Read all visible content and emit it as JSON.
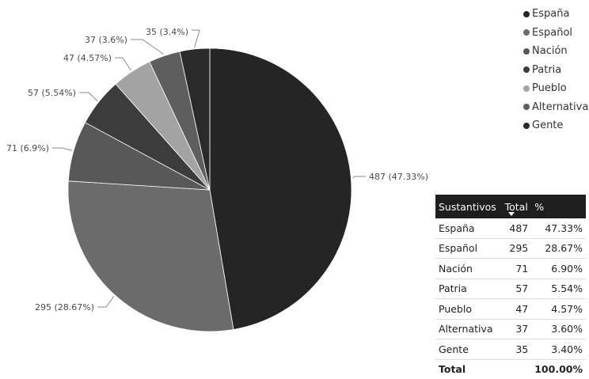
{
  "chart_data": {
    "type": "pie",
    "slices": [
      {
        "label": "España",
        "value": 487,
        "percent_label": "487 (47.33%)",
        "color": "#252525"
      },
      {
        "label": "Español",
        "value": 295,
        "percent_label": "295 (28.67%)",
        "color": "#6b6b6b"
      },
      {
        "label": "Nación",
        "value": 71,
        "percent_label": "71 (6.9%)",
        "color": "#585858"
      },
      {
        "label": "Patria",
        "value": 57,
        "percent_label": "57 (5.54%)",
        "color": "#3c3c3c"
      },
      {
        "label": "Pueblo",
        "value": 47,
        "percent_label": "47 (4.57%)",
        "color": "#a3a3a3"
      },
      {
        "label": "Alternativa",
        "value": 37,
        "percent_label": "37 (3.6%)",
        "color": "#5e5e5e"
      },
      {
        "label": "Gente",
        "value": 35,
        "percent_label": "35 (3.4%)",
        "color": "#2a2a2a"
      }
    ],
    "legend_position": "top-right"
  },
  "table": {
    "headers": [
      "Sustantivos",
      "Total",
      "%"
    ],
    "rows": [
      [
        "España",
        "487",
        "47.33%"
      ],
      [
        "Español",
        "295",
        "28.67%"
      ],
      [
        "Nación",
        "71",
        "6.90%"
      ],
      [
        "Patria",
        "57",
        "5.54%"
      ],
      [
        "Pueblo",
        "47",
        "4.57%"
      ],
      [
        "Alternativa",
        "37",
        "3.60%"
      ],
      [
        "Gente",
        "35",
        "3.40%"
      ]
    ],
    "total": [
      "Total",
      "",
      "100.00%"
    ],
    "sorted_column": "Total"
  }
}
